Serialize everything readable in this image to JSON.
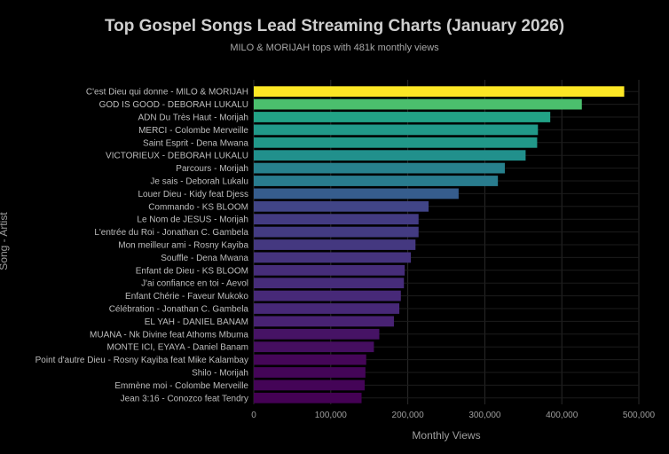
{
  "chart_data": {
    "type": "bar",
    "orientation": "horizontal",
    "title": "Top Gospel Songs Lead Streaming Charts (January 2026)",
    "subtitle": "MILO & MORIJAH tops with 481k monthly views",
    "xlabel": "Monthly Views",
    "ylabel": "Song - Artist",
    "xlim": [
      0,
      500000
    ],
    "x_ticks": [
      0,
      100000,
      200000,
      300000,
      400000,
      500000
    ],
    "x_tick_labels": [
      "0",
      "100,000",
      "200,000",
      "300,000",
      "400,000",
      "500,000"
    ],
    "grid": true,
    "legend": "none",
    "colormap": "viridis",
    "categories": [
      "C'est Dieu qui donne - MILO & MORIJAH",
      "GOD IS GOOD - DEBORAH LUKALU",
      "ADN Du Très Haut - Morijah",
      "MERCI - Colombe Merveille",
      "Saint Esprit - Dena Mwana",
      "VICTORIEUX - DEBORAH LUKALU",
      "Parcours - Morijah",
      "Je sais - Deborah Lukalu",
      "Louer Dieu - Kidy feat Djess",
      "Commando - KS BLOOM",
      "Le Nom de JESUS - Morijah",
      "L'entrée du Roi - Jonathan C. Gambela",
      "Mon meilleur ami - Rosny Kayiba",
      "Souffle - Dena Mwana",
      "Enfant de Dieu - KS BLOOM",
      "J'ai confiance en toi - Aevol",
      "Enfant Chérie - Faveur Mukoko",
      "Célébration - Jonathan C. Gambela",
      "EL YAH - DANIEL BANAM",
      "MUANA - Nk Divine feat Athoms Mbuma",
      "MONTE ICI, EYAYA - Daniel Banam",
      "Point d'autre Dieu - Rosny Kayiba feat Mike Kalambay",
      "Shilo - Morijah",
      "Emmène moi - Colombe Merveille",
      "Jean 3:16 - Conozco feat Tendry"
    ],
    "values": [
      481000,
      426000,
      385000,
      369000,
      368000,
      353000,
      326000,
      317000,
      266000,
      227000,
      214000,
      214000,
      210000,
      204000,
      196000,
      195000,
      191000,
      189000,
      182000,
      163000,
      156000,
      146000,
      145000,
      144000,
      140000
    ]
  }
}
